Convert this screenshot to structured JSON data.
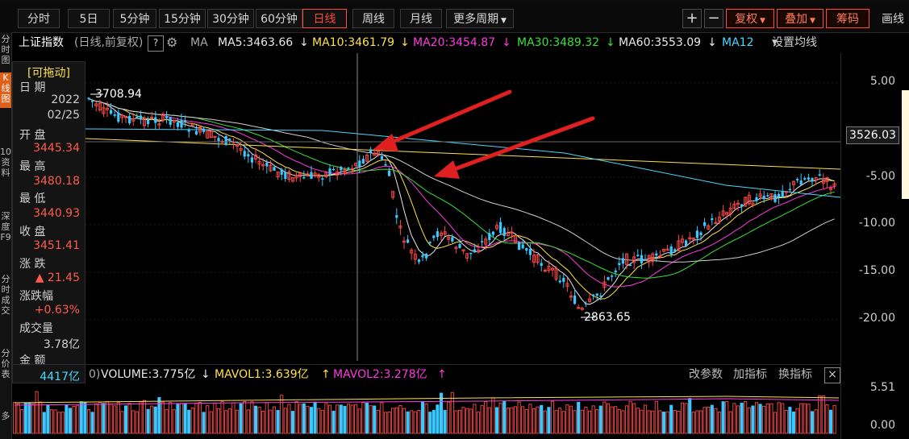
{
  "toolbar": {
    "periods": [
      "分时",
      "5日",
      "5分钟",
      "15分钟",
      "30分钟",
      "60分钟",
      "日线",
      "周线",
      "月线",
      "更多周期"
    ],
    "active": "日线",
    "plus": "+",
    "minus": "−",
    "fuquan": "复权",
    "diejia": "叠加",
    "chouma": "筹码",
    "huaxian": "画线"
  },
  "sidebar": [
    "分时图",
    "K线图",
    "10资料",
    "深度F9",
    "分时成交",
    "分价表",
    "多"
  ],
  "info": {
    "index_name": "上证指数",
    "mode": "(日线,前复权)",
    "help": "?",
    "gear": "⚙",
    "ma_label": "MA",
    "ma5": "MA5:3463.66",
    "ma10": "MA10:3461.79",
    "ma20": "MA20:3454.87",
    "ma30": "MA30:3489.32",
    "ma60": "MA60:3553.09",
    "ma120": "MA12",
    "settings": "设置均线",
    "arrow_down": "↓"
  },
  "panel": {
    "drag": "[可拖动]",
    "date_label": "日 期",
    "year": "2022",
    "date": "02/25",
    "open_label": "开 盘",
    "open": "3445.34",
    "high_label": "最 高",
    "high": "3480.18",
    "low_label": "最 低",
    "low": "3440.93",
    "close_label": "收 盘",
    "close": "3451.41",
    "change_label": "涨 跌",
    "change": "▲ 21.45",
    "pct_label": "涨跌幅",
    "pct": "+0.63%",
    "vol_label": "成交量",
    "vol": "3.78亿",
    "amt_label": "金 额",
    "amt": "4417亿"
  },
  "chart": {
    "peak_label": "3708.94",
    "trough_label": "2863.65",
    "current_price": "3526.03",
    "axis_ticks": [
      "5.00",
      "-5.00",
      "-10.00",
      "-15.00",
      "-20.00"
    ],
    "vol_ticks": [
      "5.51",
      "0.00"
    ],
    "colors": {
      "up": "#ff4a4a",
      "down": "#39c8ff",
      "ma5": "#e8e8e8",
      "ma10": "#ffe04a",
      "ma20": "#ff3adf",
      "ma30": "#3ae03a",
      "ma60": "#cfcfcf",
      "ma120": "#4ad8ff",
      "arrow": "#e02020"
    }
  },
  "volume": {
    "lead": "0)",
    "label": "VOLUME:3.775亿",
    "mavol1": "MAVOL1:3.639亿",
    "mavol2": "MAVOL2:3.278亿",
    "param": "改参数",
    "add_ind": "加指标",
    "switch_ind": "换指标",
    "close": "×"
  }
}
